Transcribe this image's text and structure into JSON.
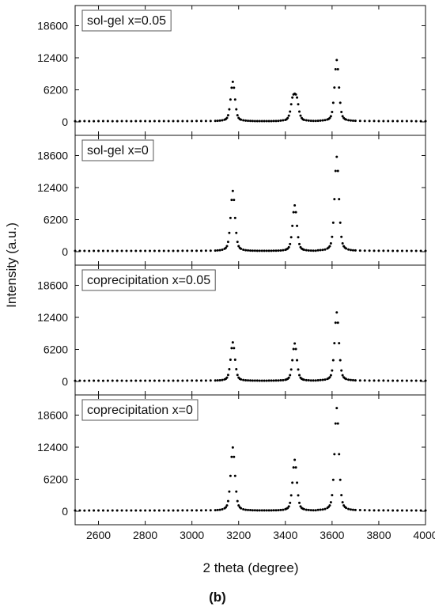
{
  "chart_data": {
    "type": "scatter",
    "xlabel": "2 theta (degree)",
    "ylabel": "Intensity (a.u.)",
    "caption": "(b)",
    "xlim": [
      2500,
      4000
    ],
    "xticks": [
      2600,
      2800,
      3000,
      3200,
      3400,
      3600,
      3800,
      4000
    ],
    "ylim": [
      -2600,
      22500
    ],
    "yticks": [
      0,
      6200,
      12400,
      18600
    ],
    "x": [
      2500,
      2520,
      2540,
      2560,
      2580,
      2600,
      2620,
      2640,
      2660,
      2680,
      2700,
      2720,
      2740,
      2760,
      2780,
      2800,
      2820,
      2840,
      2860,
      2880,
      2900,
      2920,
      2940,
      2960,
      2980,
      3000,
      3020,
      3040,
      3060,
      3080,
      3100,
      3110,
      3120,
      3130,
      3140,
      3145,
      3150,
      3155,
      3160,
      3165,
      3170,
      3175,
      3180,
      3185,
      3190,
      3195,
      3200,
      3205,
      3210,
      3220,
      3230,
      3240,
      3250,
      3260,
      3270,
      3280,
      3290,
      3300,
      3310,
      3320,
      3330,
      3340,
      3350,
      3360,
      3370,
      3380,
      3390,
      3400,
      3405,
      3410,
      3415,
      3420,
      3425,
      3430,
      3435,
      3440,
      3445,
      3450,
      3455,
      3460,
      3465,
      3470,
      3475,
      3480,
      3490,
      3500,
      3510,
      3520,
      3530,
      3540,
      3550,
      3560,
      3570,
      3580,
      3585,
      3590,
      3595,
      3600,
      3605,
      3610,
      3615,
      3620,
      3625,
      3630,
      3635,
      3640,
      3645,
      3650,
      3655,
      3660,
      3670,
      3680,
      3690,
      3700,
      3720,
      3740,
      3760,
      3780,
      3800,
      3820,
      3840,
      3860,
      3880,
      3900,
      3920,
      3940,
      3960,
      3980,
      4000
    ],
    "series": [
      {
        "name": "sol-gel x=0.05",
        "color": "#000000",
        "values": [
          140,
          145,
          150,
          145,
          140,
          150,
          155,
          150,
          145,
          140,
          150,
          150,
          145,
          150,
          155,
          150,
          145,
          150,
          150,
          155,
          150,
          150,
          155,
          160,
          155,
          160,
          165,
          165,
          170,
          175,
          185,
          211,
          241,
          302,
          416,
          530,
          758,
          1290,
          2430,
          4330,
          6610,
          7750,
          6610,
          4330,
          2430,
          1290,
          758,
          530,
          416,
          302,
          241,
          211,
          196,
          170,
          160,
          155,
          150,
          150,
          150,
          150,
          155,
          160,
          165,
          180,
          200,
          250,
          300,
          380,
          500,
          750,
          1200,
          2000,
          3400,
          4700,
          5300,
          5450,
          5300,
          4700,
          3400,
          2000,
          1200,
          750,
          500,
          380,
          300,
          250,
          220,
          200,
          195,
          215,
          245,
          285,
          345,
          455,
          563,
          740,
          1094,
          1920,
          3690,
          6640,
          10180,
          11950,
          10180,
          6640,
          3690,
          1920,
          1094,
          740,
          563,
          445,
          327,
          268,
          233,
          209,
          190,
          180,
          170,
          165,
          160,
          160,
          155,
          155,
          150,
          150,
          150,
          150,
          145,
          145,
          145
        ]
      },
      {
        "name": "sol-gel x=0",
        "color": "#000000",
        "values": [
          150,
          155,
          150,
          145,
          150,
          155,
          150,
          150,
          145,
          150,
          155,
          150,
          150,
          155,
          150,
          150,
          155,
          150,
          155,
          160,
          155,
          160,
          160,
          165,
          165,
          170,
          175,
          180,
          190,
          200,
          215,
          243,
          289,
          382,
          556,
          730,
          1078,
          1890,
          3630,
          6530,
          10010,
          11750,
          10010,
          6530,
          3630,
          1890,
          1078,
          730,
          556,
          382,
          289,
          243,
          220,
          200,
          185,
          175,
          170,
          165,
          165,
          165,
          170,
          180,
          185,
          194,
          212,
          238,
          282,
          370,
          458,
          590,
          854,
          1470,
          2790,
          4990,
          7630,
          8950,
          7630,
          4990,
          2790,
          1470,
          854,
          590,
          458,
          370,
          282,
          238,
          212,
          194,
          190,
          270,
          300,
          340,
          430,
          605,
          787,
          1060,
          1606,
          2880,
          5610,
          10160,
          15620,
          18350,
          15620,
          10160,
          5610,
          2880,
          1606,
          1060,
          787,
          605,
          423,
          332,
          277,
          241,
          220,
          200,
          190,
          180,
          175,
          170,
          165,
          160,
          160,
          155,
          155,
          150,
          150,
          150,
          150
        ]
      },
      {
        "name": "coprecipitation x=0.05",
        "color": "#000000",
        "values": [
          145,
          150,
          145,
          150,
          155,
          150,
          145,
          150,
          150,
          155,
          150,
          145,
          150,
          150,
          155,
          150,
          150,
          155,
          150,
          150,
          155,
          155,
          160,
          160,
          165,
          165,
          170,
          175,
          180,
          190,
          200,
          209,
          239,
          298,
          409,
          520,
          742,
          1260,
          2370,
          4220,
          6440,
          7550,
          6440,
          4220,
          2370,
          1260,
          742,
          520,
          409,
          298,
          239,
          209,
          195,
          180,
          170,
          165,
          160,
          160,
          160,
          160,
          165,
          172,
          179,
          186,
          200,
          222,
          258,
          330,
          402,
          510,
          726,
          1230,
          2310,
          4110,
          6270,
          7350,
          6270,
          4110,
          2310,
          1230,
          726,
          510,
          402,
          330,
          258,
          222,
          200,
          186,
          185,
          236,
          262,
          300,
          360,
          490,
          612,
          810,
          1206,
          2130,
          4110,
          7410,
          11370,
          13350,
          11370,
          7410,
          4110,
          2130,
          1206,
          810,
          612,
          480,
          348,
          282,
          242,
          216,
          200,
          190,
          180,
          175,
          170,
          165,
          160,
          160,
          155,
          155,
          150,
          150,
          150,
          150,
          150
        ]
      },
      {
        "name": "coprecipitation x=0",
        "color": "#000000",
        "values": [
          150,
          150,
          145,
          150,
          155,
          150,
          150,
          145,
          150,
          155,
          150,
          150,
          155,
          150,
          150,
          155,
          150,
          150,
          155,
          155,
          160,
          160,
          160,
          165,
          170,
          170,
          175,
          180,
          190,
          200,
          215,
          248,
          296,
          394,
          577,
          760,
          1126,
          1980,
          3810,
          6860,
          10520,
          12350,
          10520,
          6860,
          3810,
          1980,
          1126,
          760,
          577,
          394,
          296,
          248,
          225,
          200,
          185,
          175,
          170,
          165,
          165,
          165,
          170,
          180,
          189,
          199,
          219,
          248,
          297,
          395,
          493,
          640,
          934,
          1620,
          3090,
          5540,
          8480,
          9950,
          8480,
          5540,
          3090,
          1620,
          934,
          640,
          493,
          395,
          297,
          248,
          219,
          199,
          195,
          275,
          300,
          350,
          450,
          645,
          843,
          1140,
          1734,
          3120,
          6090,
          11040,
          16980,
          19950,
          16980,
          11040,
          6090,
          3120,
          1734,
          1140,
          843,
          645,
          447,
          348,
          289,
          249,
          225,
          205,
          190,
          180,
          175,
          170,
          165,
          160,
          160,
          155,
          155,
          150,
          150,
          150,
          150
        ]
      }
    ]
  }
}
